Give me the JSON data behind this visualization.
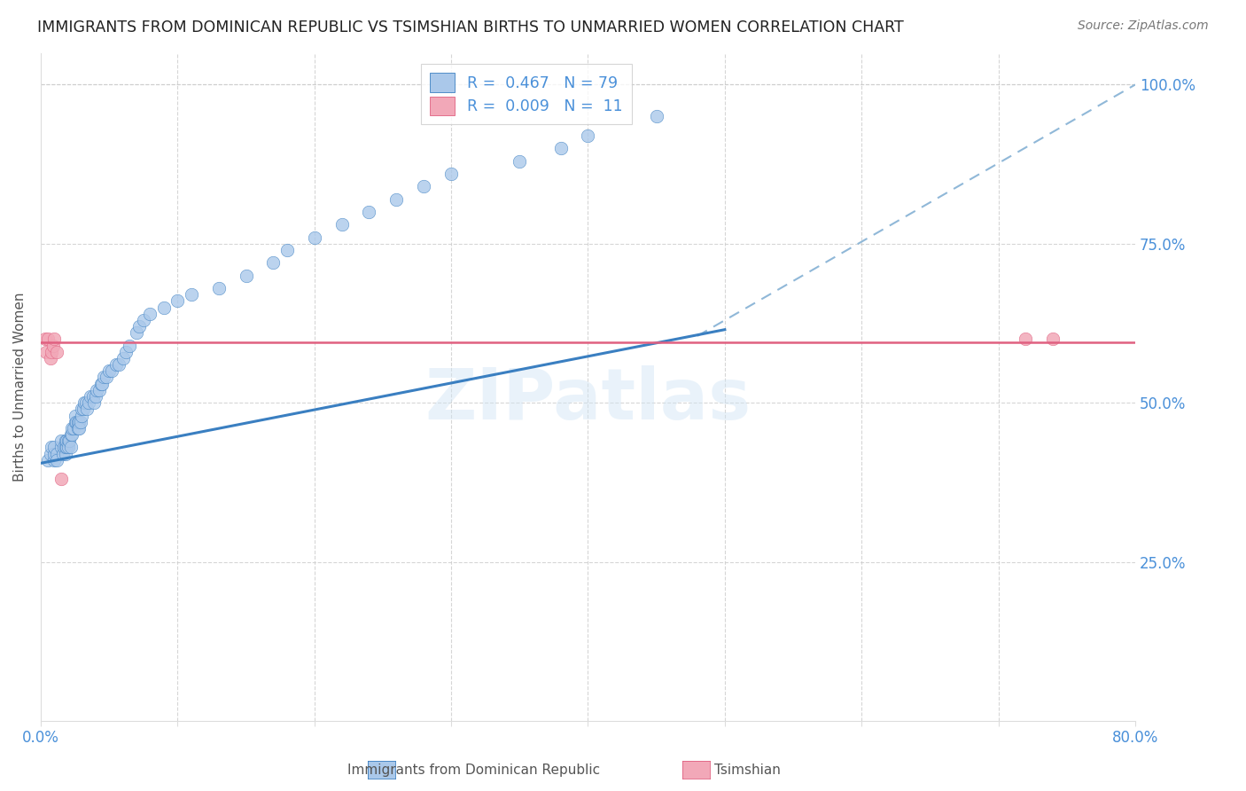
{
  "title": "IMMIGRANTS FROM DOMINICAN REPUBLIC VS TSIMSHIAN BIRTHS TO UNMARRIED WOMEN CORRELATION CHART",
  "source": "Source: ZipAtlas.com",
  "ylabel": "Births to Unmarried Women",
  "ytick_labels": [
    "100.0%",
    "75.0%",
    "50.0%",
    "25.0%"
  ],
  "ytick_values": [
    1.0,
    0.75,
    0.5,
    0.25
  ],
  "xlim": [
    0.0,
    0.8
  ],
  "ylim": [
    0.0,
    1.05
  ],
  "watermark": "ZIPatlas",
  "legend_blue_label": "Immigrants from Dominican Republic",
  "legend_pink_label": "Tsimshian",
  "blue_color": "#aac8ea",
  "pink_color": "#f2a8b8",
  "blue_line_color": "#3a7fc1",
  "pink_line_color": "#e06080",
  "dashed_line_color": "#90b8d8",
  "grid_color": "#cccccc",
  "title_color": "#222222",
  "right_axis_color": "#4a90d9",
  "blue_scatter_x": [
    0.005,
    0.007,
    0.008,
    0.01,
    0.01,
    0.01,
    0.012,
    0.012,
    0.015,
    0.015,
    0.016,
    0.017,
    0.018,
    0.018,
    0.018,
    0.019,
    0.019,
    0.02,
    0.02,
    0.021,
    0.022,
    0.022,
    0.023,
    0.023,
    0.024,
    0.025,
    0.025,
    0.026,
    0.027,
    0.027,
    0.028,
    0.028,
    0.029,
    0.03,
    0.03,
    0.031,
    0.032,
    0.033,
    0.034,
    0.035,
    0.036,
    0.038,
    0.039,
    0.04,
    0.041,
    0.043,
    0.044,
    0.045,
    0.046,
    0.048,
    0.05,
    0.052,
    0.055,
    0.057,
    0.06,
    0.062,
    0.065,
    0.07,
    0.072,
    0.075,
    0.08,
    0.09,
    0.1,
    0.11,
    0.13,
    0.15,
    0.17,
    0.18,
    0.2,
    0.22,
    0.24,
    0.26,
    0.28,
    0.3,
    0.35,
    0.38,
    0.4,
    0.45
  ],
  "blue_scatter_y": [
    0.41,
    0.42,
    0.43,
    0.41,
    0.42,
    0.43,
    0.42,
    0.41,
    0.43,
    0.44,
    0.42,
    0.43,
    0.42,
    0.43,
    0.44,
    0.43,
    0.44,
    0.44,
    0.43,
    0.44,
    0.43,
    0.45,
    0.45,
    0.46,
    0.46,
    0.47,
    0.48,
    0.47,
    0.46,
    0.47,
    0.47,
    0.46,
    0.47,
    0.48,
    0.49,
    0.49,
    0.5,
    0.5,
    0.49,
    0.5,
    0.51,
    0.51,
    0.5,
    0.51,
    0.52,
    0.52,
    0.53,
    0.53,
    0.54,
    0.54,
    0.55,
    0.55,
    0.56,
    0.56,
    0.57,
    0.58,
    0.59,
    0.61,
    0.62,
    0.63,
    0.64,
    0.65,
    0.66,
    0.67,
    0.68,
    0.7,
    0.72,
    0.74,
    0.76,
    0.78,
    0.8,
    0.82,
    0.84,
    0.86,
    0.88,
    0.9,
    0.92,
    0.95
  ],
  "pink_scatter_x": [
    0.003,
    0.004,
    0.005,
    0.007,
    0.008,
    0.009,
    0.01,
    0.012,
    0.015,
    0.72,
    0.74
  ],
  "pink_scatter_y": [
    0.6,
    0.58,
    0.6,
    0.57,
    0.58,
    0.59,
    0.6,
    0.58,
    0.38,
    0.6,
    0.6
  ],
  "blue_line_x": [
    0.0,
    0.5
  ],
  "blue_line_y": [
    0.405,
    0.615
  ],
  "pink_line_y": 0.595,
  "dashed_line_x": [
    0.48,
    0.8
  ],
  "dashed_line_y": [
    0.605,
    1.0
  ]
}
